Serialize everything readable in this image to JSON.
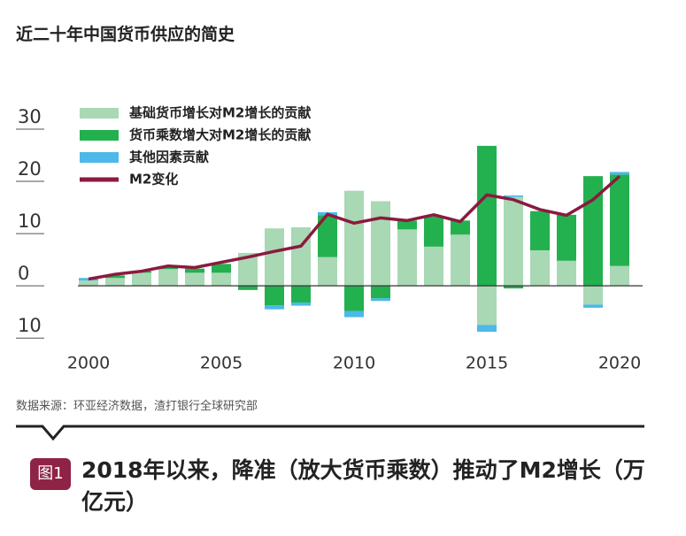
{
  "chart_data": {
    "type": "stacked_bar_line",
    "title": "近二十年中国货币供应的简史",
    "source": "数据来源：环亚经济数据，渣打银行全球研究部",
    "figure_label": "图1",
    "caption": "2018年以来，降准（放大货币乘数）推动了M2增长（万亿元）",
    "x": [
      2000,
      2001,
      2002,
      2003,
      2004,
      2005,
      2006,
      2007,
      2008,
      2009,
      2010,
      2011,
      2012,
      2013,
      2014,
      2015,
      2016,
      2017,
      2018,
      2019,
      2020
    ],
    "xlim": [
      1999.6,
      2020.6
    ],
    "xticks": [
      2000,
      2005,
      2010,
      2015,
      2020
    ],
    "ylim": [
      -12,
      30
    ],
    "yticks": [
      {
        "value": -10,
        "label": "10"
      },
      0,
      10,
      20,
      30
    ],
    "series": [
      {
        "name": "基础货币增长对M2增长的贡献",
        "color": "#a9d8b4",
        "kind": "bar",
        "values": [
          1.0,
          1.5,
          2.5,
          3.2,
          2.5,
          2.5,
          6.3,
          11.0,
          11.2,
          5.5,
          18.2,
          16.2,
          10.8,
          7.5,
          9.8,
          -7.5,
          17.0,
          6.8,
          4.8,
          -3.6,
          3.8
        ]
      },
      {
        "name": "货币乘数增大对M2增长的贡献",
        "color": "#23b04f",
        "kind": "bar",
        "values": [
          0,
          0.5,
          0.3,
          0.5,
          0.8,
          1.7,
          -0.8,
          -3.7,
          -3.2,
          8.0,
          -4.8,
          -2.4,
          1.7,
          5.8,
          2.7,
          26.8,
          -0.5,
          7.5,
          8.8,
          21.0,
          17.5
        ]
      },
      {
        "name": "其他因素贡献",
        "color": "#4cb9e8",
        "kind": "bar",
        "values": [
          0.5,
          0,
          0,
          0,
          0,
          0,
          0,
          -0.8,
          -0.6,
          0.6,
          -1.2,
          -0.5,
          0,
          0,
          0,
          -1.3,
          0.3,
          0,
          0,
          -0.6,
          0.5
        ]
      },
      {
        "name": "M2变化",
        "color": "#8b1a3e",
        "kind": "line",
        "values": [
          1.3,
          2.2,
          2.8,
          3.8,
          3.5,
          4.5,
          5.5,
          6.6,
          7.6,
          13.7,
          12.0,
          13.0,
          12.5,
          13.6,
          12.3,
          17.4,
          16.5,
          14.6,
          13.5,
          16.5,
          21.0
        ]
      }
    ]
  }
}
